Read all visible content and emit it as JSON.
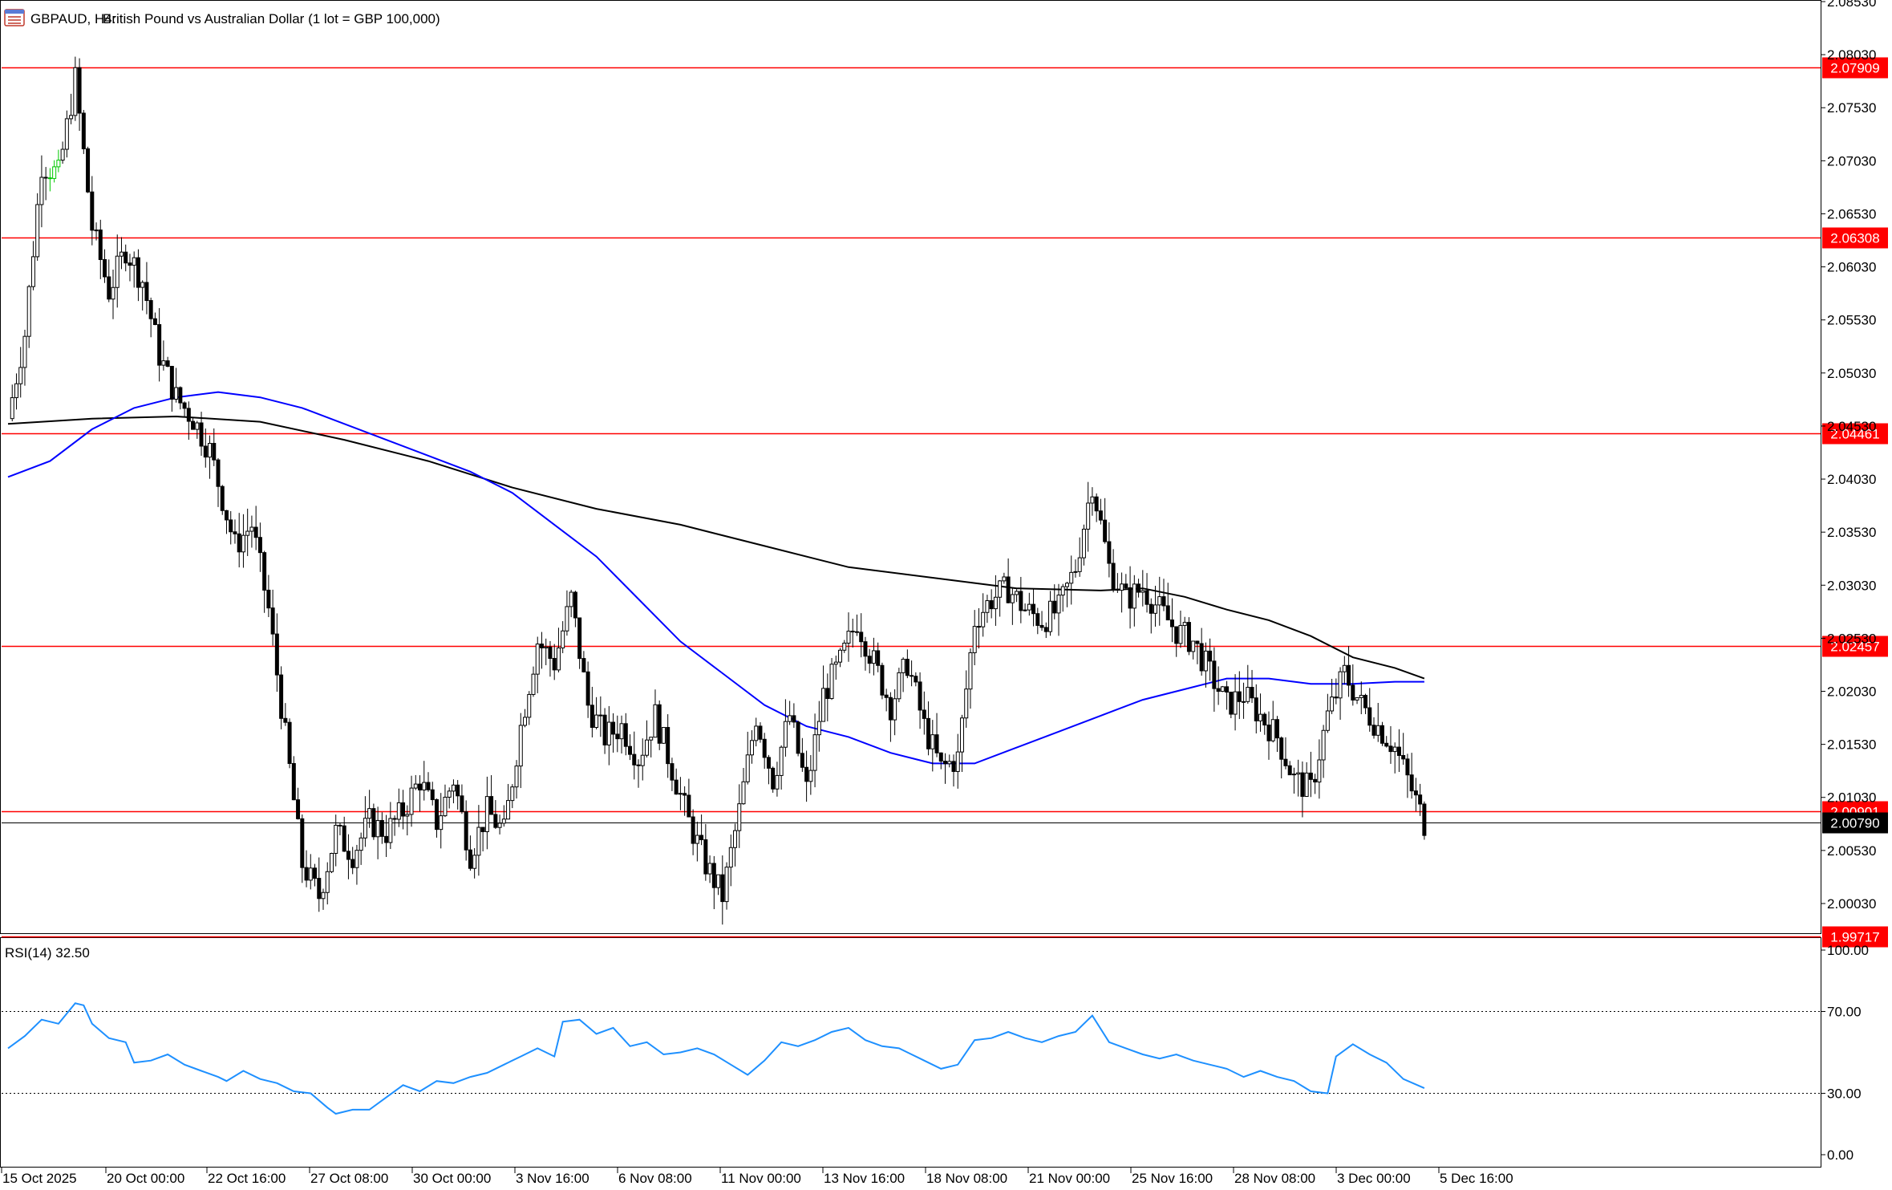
{
  "header": {
    "symbol": "GBPAUD, H4:",
    "description": "British Pound vs Australian Dollar (1 lot = GBP 100,000)"
  },
  "colors": {
    "bull": "#ffffff",
    "bear": "#000000",
    "candle_outline": "#000000",
    "highlight_candles": "#00c800",
    "ma_fast": "#0000ff",
    "ma_slow": "#000000",
    "level_line": "#ff0000",
    "rsi_line": "#1e90ff",
    "axis": "#000000",
    "grid": "#000000"
  },
  "chart_data": [
    {
      "type": "candlestick",
      "title": "GBPAUD, H4:  British Pound vs Australian Dollar (1 lot = GBP 100,000)",
      "ylim": [
        1.9975,
        2.0853
      ],
      "y_ticks": [
        "2.08530",
        "2.08030",
        "2.07530",
        "2.07030",
        "2.06530",
        "2.06030",
        "2.05530",
        "2.05030",
        "2.04530",
        "2.04030",
        "2.03530",
        "2.03030",
        "2.02530",
        "2.02030",
        "2.01530",
        "2.01030",
        "2.00530",
        "2.00030"
      ],
      "x_ticks": [
        "15 Oct 2025",
        "20 Oct 00:00",
        "22 Oct 16:00",
        "27 Oct 08:00",
        "30 Oct 00:00",
        "3 Nov 16:00",
        "6 Nov 08:00",
        "11 Nov 00:00",
        "13 Nov 16:00",
        "18 Nov 08:00",
        "21 Nov 00:00",
        "25 Nov 16:00",
        "28 Nov 08:00",
        "3 Dec 00:00",
        "5 Dec 16:00"
      ],
      "current_price": "2.00790",
      "levels": [
        "2.07909",
        "2.06308",
        "2.04461",
        "2.02457",
        "2.00901",
        "1.99717"
      ],
      "close_path": [
        [
          0,
          2.046
        ],
        [
          4,
          2.054
        ],
        [
          8,
          2.07
        ],
        [
          12,
          2.069
        ],
        [
          16,
          2.078
        ],
        [
          20,
          2.064
        ],
        [
          24,
          2.058
        ],
        [
          28,
          2.062
        ],
        [
          32,
          2.059
        ],
        [
          36,
          2.052
        ],
        [
          40,
          2.048
        ],
        [
          44,
          2.046
        ],
        [
          48,
          2.043
        ],
        [
          50,
          2.04
        ],
        [
          54,
          2.034
        ],
        [
          58,
          2.036
        ],
        [
          62,
          2.028
        ],
        [
          66,
          2.016
        ],
        [
          70,
          2.004
        ],
        [
          74,
          2.001
        ],
        [
          78,
          2.007
        ],
        [
          82,
          2.005
        ],
        [
          86,
          2.008
        ],
        [
          90,
          2.007
        ],
        [
          94,
          2.009
        ],
        [
          98,
          2.012
        ],
        [
          102,
          2.008
        ],
        [
          106,
          2.012
        ],
        [
          110,
          2.005
        ],
        [
          114,
          2.009
        ],
        [
          118,
          2.007
        ],
        [
          122,
          2.017
        ],
        [
          126,
          2.025
        ],
        [
          130,
          2.023
        ],
        [
          134,
          2.029
        ],
        [
          138,
          2.019
        ],
        [
          142,
          2.016
        ],
        [
          146,
          2.017
        ],
        [
          150,
          2.014
        ],
        [
          154,
          2.018
        ],
        [
          158,
          2.013
        ],
        [
          162,
          2.008
        ],
        [
          166,
          2.004
        ],
        [
          170,
          2.001
        ],
        [
          174,
          2.009
        ],
        [
          178,
          2.018
        ],
        [
          182,
          2.012
        ],
        [
          186,
          2.018
        ],
        [
          190,
          2.011
        ],
        [
          194,
          2.02
        ],
        [
          198,
          2.023
        ],
        [
          202,
          2.027
        ],
        [
          206,
          2.023
        ],
        [
          210,
          2.019
        ],
        [
          214,
          2.023
        ],
        [
          218,
          2.017
        ],
        [
          222,
          2.013
        ],
        [
          226,
          2.014
        ],
        [
          230,
          2.027
        ],
        [
          234,
          2.029
        ],
        [
          238,
          2.03
        ],
        [
          242,
          2.028
        ],
        [
          246,
          2.027
        ],
        [
          250,
          2.028
        ],
        [
          254,
          2.032
        ],
        [
          258,
          2.04
        ],
        [
          262,
          2.032
        ],
        [
          266,
          2.029
        ],
        [
          270,
          2.03
        ],
        [
          274,
          2.028
        ],
        [
          278,
          2.026
        ],
        [
          282,
          2.025
        ],
        [
          286,
          2.022
        ],
        [
          290,
          2.019
        ],
        [
          294,
          2.02
        ],
        [
          298,
          2.018
        ],
        [
          302,
          2.016
        ],
        [
          306,
          2.012
        ],
        [
          310,
          2.011
        ],
        [
          314,
          2.018
        ],
        [
          318,
          2.022
        ],
        [
          322,
          2.019
        ],
        [
          326,
          2.017
        ],
        [
          330,
          2.015
        ],
        [
          334,
          2.011
        ],
        [
          337,
          2.0079
        ]
      ],
      "highlight_bars": [
        10,
        11,
        12
      ],
      "ma_fast_path": [
        [
          0,
          2.0405
        ],
        [
          10,
          2.042
        ],
        [
          20,
          2.045
        ],
        [
          30,
          2.047
        ],
        [
          40,
          2.048
        ],
        [
          50,
          2.0485
        ],
        [
          60,
          2.048
        ],
        [
          70,
          2.047
        ],
        [
          90,
          2.044
        ],
        [
          110,
          2.041
        ],
        [
          120,
          2.039
        ],
        [
          130,
          2.036
        ],
        [
          140,
          2.033
        ],
        [
          150,
          2.029
        ],
        [
          160,
          2.025
        ],
        [
          170,
          2.022
        ],
        [
          180,
          2.019
        ],
        [
          190,
          2.017
        ],
        [
          200,
          2.016
        ],
        [
          210,
          2.0145
        ],
        [
          220,
          2.0135
        ],
        [
          230,
          2.0135
        ],
        [
          240,
          2.015
        ],
        [
          250,
          2.0165
        ],
        [
          260,
          2.018
        ],
        [
          270,
          2.0195
        ],
        [
          280,
          2.0205
        ],
        [
          290,
          2.0215
        ],
        [
          300,
          2.0215
        ],
        [
          310,
          2.021
        ],
        [
          320,
          2.021
        ],
        [
          330,
          2.0212
        ],
        [
          337,
          2.0212
        ]
      ],
      "ma_slow_path": [
        [
          0,
          2.0455
        ],
        [
          20,
          2.046
        ],
        [
          40,
          2.0462
        ],
        [
          60,
          2.0457
        ],
        [
          80,
          2.044
        ],
        [
          100,
          2.042
        ],
        [
          120,
          2.0395
        ],
        [
          140,
          2.0375
        ],
        [
          160,
          2.036
        ],
        [
          180,
          2.034
        ],
        [
          200,
          2.032
        ],
        [
          220,
          2.031
        ],
        [
          240,
          2.03
        ],
        [
          260,
          2.0298
        ],
        [
          270,
          2.03
        ],
        [
          280,
          2.0292
        ],
        [
          290,
          2.028
        ],
        [
          300,
          2.027
        ],
        [
          310,
          2.0255
        ],
        [
          320,
          2.0235
        ],
        [
          330,
          2.0225
        ],
        [
          337,
          2.0215
        ]
      ]
    },
    {
      "type": "line",
      "title": "RSI(14) 32.50",
      "ylim": [
        0,
        100
      ],
      "y_ticks": [
        "100.00",
        "70.00",
        "30.00",
        "0.00"
      ],
      "levels": [
        70,
        30
      ],
      "series": [
        {
          "name": "RSI(14)",
          "points": [
            [
              0,
              52
            ],
            [
              4,
              58
            ],
            [
              8,
              66
            ],
            [
              12,
              64
            ],
            [
              16,
              74
            ],
            [
              18,
              73
            ],
            [
              20,
              64
            ],
            [
              24,
              57
            ],
            [
              28,
              55
            ],
            [
              30,
              45
            ],
            [
              34,
              46
            ],
            [
              38,
              49
            ],
            [
              42,
              44
            ],
            [
              46,
              41
            ],
            [
              50,
              38
            ],
            [
              52,
              36
            ],
            [
              56,
              41
            ],
            [
              60,
              37
            ],
            [
              64,
              35
            ],
            [
              68,
              31
            ],
            [
              72,
              30
            ],
            [
              76,
              23
            ],
            [
              78,
              20
            ],
            [
              82,
              22
            ],
            [
              86,
              22
            ],
            [
              90,
              28
            ],
            [
              94,
              34
            ],
            [
              98,
              31
            ],
            [
              102,
              36
            ],
            [
              106,
              35
            ],
            [
              110,
              38
            ],
            [
              114,
              40
            ],
            [
              118,
              44
            ],
            [
              122,
              48
            ],
            [
              126,
              52
            ],
            [
              130,
              48
            ],
            [
              132,
              65
            ],
            [
              136,
              66
            ],
            [
              140,
              59
            ],
            [
              144,
              62
            ],
            [
              148,
              53
            ],
            [
              152,
              55
            ],
            [
              156,
              49
            ],
            [
              160,
              50
            ],
            [
              164,
              52
            ],
            [
              168,
              49
            ],
            [
              172,
              44
            ],
            [
              176,
              39
            ],
            [
              180,
              46
            ],
            [
              184,
              55
            ],
            [
              188,
              53
            ],
            [
              192,
              56
            ],
            [
              196,
              60
            ],
            [
              200,
              62
            ],
            [
              204,
              56
            ],
            [
              208,
              53
            ],
            [
              212,
              52
            ],
            [
              214,
              50
            ],
            [
              218,
              46
            ],
            [
              222,
              42
            ],
            [
              226,
              44
            ],
            [
              230,
              56
            ],
            [
              234,
              57
            ],
            [
              238,
              60
            ],
            [
              242,
              57
            ],
            [
              246,
              55
            ],
            [
              250,
              58
            ],
            [
              254,
              60
            ],
            [
              258,
              68
            ],
            [
              262,
              55
            ],
            [
              266,
              52
            ],
            [
              270,
              49
            ],
            [
              274,
              47
            ],
            [
              278,
              49
            ],
            [
              282,
              46
            ],
            [
              286,
              44
            ],
            [
              290,
              42
            ],
            [
              294,
              38
            ],
            [
              298,
              41
            ],
            [
              302,
              38
            ],
            [
              306,
              36
            ],
            [
              310,
              31
            ],
            [
              314,
              30
            ],
            [
              316,
              48
            ],
            [
              320,
              54
            ],
            [
              324,
              49
            ],
            [
              328,
              45
            ],
            [
              332,
              37
            ],
            [
              337,
              32.5
            ]
          ]
        }
      ]
    }
  ],
  "rsi_label": "RSI(14) 32.50"
}
